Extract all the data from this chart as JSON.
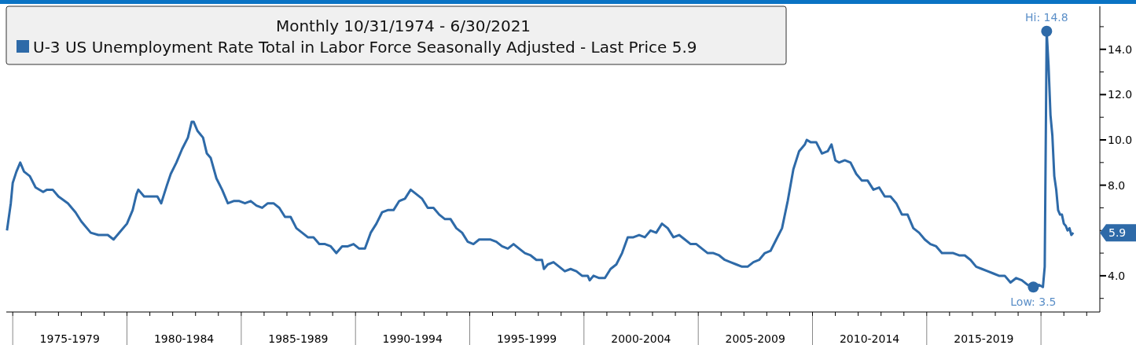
{
  "chart_data": {
    "type": "line",
    "title": "Monthly 10/31/1974 - 6/30/2021",
    "legend": "top left",
    "marker": "none",
    "line_style": "solid",
    "grid": false,
    "x": [
      "1974-10",
      "1974-12",
      "1975-01",
      "1975-03",
      "1975-05",
      "1975-07",
      "1975-10",
      "1976-01",
      "1976-05",
      "1976-07",
      "1976-10",
      "1977-01",
      "1977-06",
      "1977-10",
      "1978-01",
      "1978-06",
      "1978-10",
      "1979-03",
      "1979-06",
      "1979-10",
      "1980-01",
      "1980-04",
      "1980-06",
      "1980-07",
      "1980-10",
      "1981-01",
      "1981-05",
      "1981-07",
      "1981-10",
      "1981-12",
      "1982-03",
      "1982-06",
      "1982-09",
      "1982-11",
      "1982-12",
      "1983-02",
      "1983-05",
      "1983-07",
      "1983-09",
      "1983-12",
      "1984-03",
      "1984-06",
      "1984-09",
      "1984-12",
      "1985-03",
      "1985-06",
      "1985-09",
      "1985-12",
      "1986-03",
      "1986-06",
      "1986-09",
      "1986-12",
      "1987-03",
      "1987-06",
      "1987-09",
      "1987-12",
      "1988-03",
      "1988-06",
      "1988-09",
      "1988-12",
      "1989-03",
      "1989-06",
      "1989-09",
      "1989-12",
      "1990-03",
      "1990-06",
      "1990-09",
      "1990-12",
      "1991-03",
      "1991-06",
      "1991-09",
      "1991-12",
      "1992-03",
      "1992-06",
      "1992-09",
      "1992-12",
      "1993-03",
      "1993-06",
      "1993-09",
      "1993-12",
      "1994-03",
      "1994-06",
      "1994-09",
      "1994-12",
      "1995-03",
      "1995-06",
      "1995-09",
      "1995-12",
      "1996-03",
      "1996-06",
      "1996-09",
      "1996-12",
      "1997-03",
      "1997-06",
      "1997-09",
      "1997-12",
      "1998-03",
      "1998-04",
      "1998-06",
      "1998-09",
      "1998-12",
      "1999-03",
      "1999-06",
      "1999-09",
      "1999-12",
      "2000-03",
      "2000-04",
      "2000-06",
      "2000-09",
      "2000-12",
      "2001-03",
      "2001-06",
      "2001-09",
      "2001-12",
      "2002-03",
      "2002-06",
      "2002-09",
      "2002-12",
      "2003-03",
      "2003-06",
      "2003-09",
      "2003-12",
      "2004-03",
      "2004-06",
      "2004-09",
      "2004-12",
      "2005-03",
      "2005-06",
      "2005-09",
      "2005-12",
      "2006-03",
      "2006-06",
      "2006-09",
      "2006-12",
      "2007-03",
      "2007-06",
      "2007-09",
      "2007-12",
      "2008-03",
      "2008-06",
      "2008-09",
      "2008-12",
      "2009-03",
      "2009-06",
      "2009-09",
      "2009-10",
      "2009-12",
      "2010-03",
      "2010-06",
      "2010-09",
      "2010-11",
      "2011-01",
      "2011-03",
      "2011-06",
      "2011-09",
      "2011-12",
      "2012-03",
      "2012-06",
      "2012-09",
      "2012-12",
      "2013-03",
      "2013-06",
      "2013-09",
      "2013-12",
      "2014-03",
      "2014-06",
      "2014-09",
      "2014-12",
      "2015-03",
      "2015-06",
      "2015-09",
      "2015-12",
      "2016-03",
      "2016-06",
      "2016-09",
      "2016-12",
      "2017-03",
      "2017-06",
      "2017-09",
      "2017-12",
      "2018-03",
      "2018-06",
      "2018-09",
      "2018-12",
      "2019-03",
      "2019-06",
      "2019-09",
      "2019-12",
      "2020-02",
      "2020-03",
      "2020-04",
      "2020-05",
      "2020-06",
      "2020-07",
      "2020-08",
      "2020-09",
      "2020-10",
      "2020-11",
      "2020-12",
      "2021-01",
      "2021-02",
      "2021-03",
      "2021-04",
      "2021-05",
      "2021-06"
    ],
    "series": [
      {
        "name": "U-3 US Unemployment Rate Total in Labor Force Seasonally Adjusted - Last Price 5.9",
        "color": "#2e6aa8",
        "values": [
          6.0,
          7.2,
          8.1,
          8.6,
          9.0,
          8.6,
          8.4,
          7.9,
          7.7,
          7.8,
          7.8,
          7.5,
          7.2,
          6.8,
          6.4,
          5.9,
          5.8,
          5.8,
          5.6,
          6.0,
          6.3,
          6.9,
          7.6,
          7.8,
          7.5,
          7.5,
          7.5,
          7.2,
          8.0,
          8.5,
          9.0,
          9.6,
          10.1,
          10.8,
          10.8,
          10.4,
          10.1,
          9.4,
          9.2,
          8.3,
          7.8,
          7.2,
          7.3,
          7.3,
          7.2,
          7.3,
          7.1,
          7.0,
          7.2,
          7.2,
          7.0,
          6.6,
          6.6,
          6.1,
          5.9,
          5.7,
          5.7,
          5.4,
          5.4,
          5.3,
          5.0,
          5.3,
          5.3,
          5.4,
          5.2,
          5.2,
          5.9,
          6.3,
          6.8,
          6.9,
          6.9,
          7.3,
          7.4,
          7.8,
          7.6,
          7.4,
          7.0,
          7.0,
          6.7,
          6.5,
          6.5,
          6.1,
          5.9,
          5.5,
          5.4,
          5.6,
          5.6,
          5.6,
          5.5,
          5.3,
          5.2,
          5.4,
          5.2,
          5.0,
          4.9,
          4.7,
          4.7,
          4.3,
          4.5,
          4.6,
          4.4,
          4.2,
          4.3,
          4.2,
          4.0,
          4.0,
          3.8,
          4.0,
          3.9,
          3.9,
          4.3,
          4.5,
          5.0,
          5.7,
          5.7,
          5.8,
          5.7,
          6.0,
          5.9,
          6.3,
          6.1,
          5.7,
          5.8,
          5.6,
          5.4,
          5.4,
          5.2,
          5.0,
          5.0,
          4.9,
          4.7,
          4.6,
          4.5,
          4.4,
          4.4,
          4.6,
          4.7,
          5.0,
          5.1,
          5.6,
          6.1,
          7.3,
          8.7,
          9.5,
          9.8,
          10.0,
          9.9,
          9.9,
          9.4,
          9.5,
          9.8,
          9.1,
          9.0,
          9.1,
          9.0,
          8.5,
          8.2,
          8.2,
          7.8,
          7.9,
          7.5,
          7.5,
          7.2,
          6.7,
          6.7,
          6.1,
          5.9,
          5.6,
          5.4,
          5.3,
          5.0,
          5.0,
          5.0,
          4.9,
          4.9,
          4.7,
          4.4,
          4.3,
          4.2,
          4.1,
          4.0,
          4.0,
          3.7,
          3.9,
          3.8,
          3.6,
          3.5,
          3.6,
          3.5,
          4.4,
          14.8,
          13.3,
          11.1,
          10.2,
          8.4,
          7.8,
          6.9,
          6.7,
          6.7,
          6.3,
          6.2,
          6.0,
          6.1,
          5.8,
          5.9
        ]
      }
    ],
    "xlim": [
      "1974-09-20",
      "2022-07-30"
    ],
    "xticks": [
      {
        "value": "1975",
        "label": null
      },
      {
        "value": "1976",
        "label": null
      },
      {
        "value": "1977",
        "label": null
      },
      {
        "value": "1977-07",
        "label": "1975-1979"
      },
      {
        "value": "1978",
        "label": null
      },
      {
        "value": "1979",
        "label": null
      },
      {
        "value": "1980",
        "label": null
      },
      {
        "value": "1981",
        "label": null
      },
      {
        "value": "1982",
        "label": null
      },
      {
        "value": "1982-07",
        "label": "1980-1984"
      },
      {
        "value": "1983",
        "label": null
      },
      {
        "value": "1984",
        "label": null
      },
      {
        "value": "1985",
        "label": null
      },
      {
        "value": "1986",
        "label": null
      },
      {
        "value": "1987",
        "label": null
      },
      {
        "value": "1987-07",
        "label": "1985-1989"
      },
      {
        "value": "1988",
        "label": null
      },
      {
        "value": "1989",
        "label": null
      },
      {
        "value": "1990",
        "label": null
      },
      {
        "value": "1991",
        "label": null
      },
      {
        "value": "1992",
        "label": null
      },
      {
        "value": "1992-07",
        "label": "1990-1994"
      },
      {
        "value": "1993",
        "label": null
      },
      {
        "value": "1994",
        "label": null
      },
      {
        "value": "1995",
        "label": null
      },
      {
        "value": "1996",
        "label": null
      },
      {
        "value": "1997",
        "label": null
      },
      {
        "value": "1997-07",
        "label": "1995-1999"
      },
      {
        "value": "1998",
        "label": null
      },
      {
        "value": "1999",
        "label": null
      },
      {
        "value": "2000",
        "label": null
      },
      {
        "value": "2001",
        "label": null
      },
      {
        "value": "2002",
        "label": null
      },
      {
        "value": "2002-07",
        "label": "2000-2004"
      },
      {
        "value": "2003",
        "label": null
      },
      {
        "value": "2004",
        "label": null
      },
      {
        "value": "2005",
        "label": null
      },
      {
        "value": "2006",
        "label": null
      },
      {
        "value": "2007",
        "label": null
      },
      {
        "value": "2007-07",
        "label": "2005-2009"
      },
      {
        "value": "2008",
        "label": null
      },
      {
        "value": "2009",
        "label": null
      },
      {
        "value": "2010",
        "label": null
      },
      {
        "value": "2011",
        "label": null
      },
      {
        "value": "2012",
        "label": null
      },
      {
        "value": "2012-07",
        "label": "2010-2014"
      },
      {
        "value": "2013",
        "label": null
      },
      {
        "value": "2014",
        "label": null
      },
      {
        "value": "2015",
        "label": null
      },
      {
        "value": "2016",
        "label": null
      },
      {
        "value": "2017",
        "label": null
      },
      {
        "value": "2017-07",
        "label": "2015-2019"
      },
      {
        "value": "2018",
        "label": null
      },
      {
        "value": "2019",
        "label": null
      },
      {
        "value": "2020",
        "label": null
      },
      {
        "value": "2021",
        "label": null
      },
      {
        "value": "2022",
        "label": null
      }
    ],
    "ylim": [
      2.4,
      15.9
    ],
    "yticks": [
      {
        "value": 3,
        "label": null
      },
      {
        "value": 4,
        "label": "4.0"
      },
      {
        "value": 5,
        "label": null
      },
      {
        "value": 6,
        "label": null
      },
      {
        "value": 7,
        "label": null
      },
      {
        "value": 8,
        "label": "8.0"
      },
      {
        "value": 9,
        "label": null
      },
      {
        "value": 10,
        "label": "10.0"
      },
      {
        "value": 11,
        "label": null
      },
      {
        "value": 12,
        "label": "12.0"
      },
      {
        "value": 13,
        "label": null
      },
      {
        "value": 14,
        "label": "14.0"
      },
      {
        "value": 15,
        "label": null
      }
    ],
    "annotations": [
      {
        "text": "Hi: 14.8",
        "x": "2020-04",
        "y": 14.8
      },
      {
        "text": "Low: 3.5",
        "x": "2019-09",
        "y": 3.5
      },
      "5.9"
    ]
  }
}
